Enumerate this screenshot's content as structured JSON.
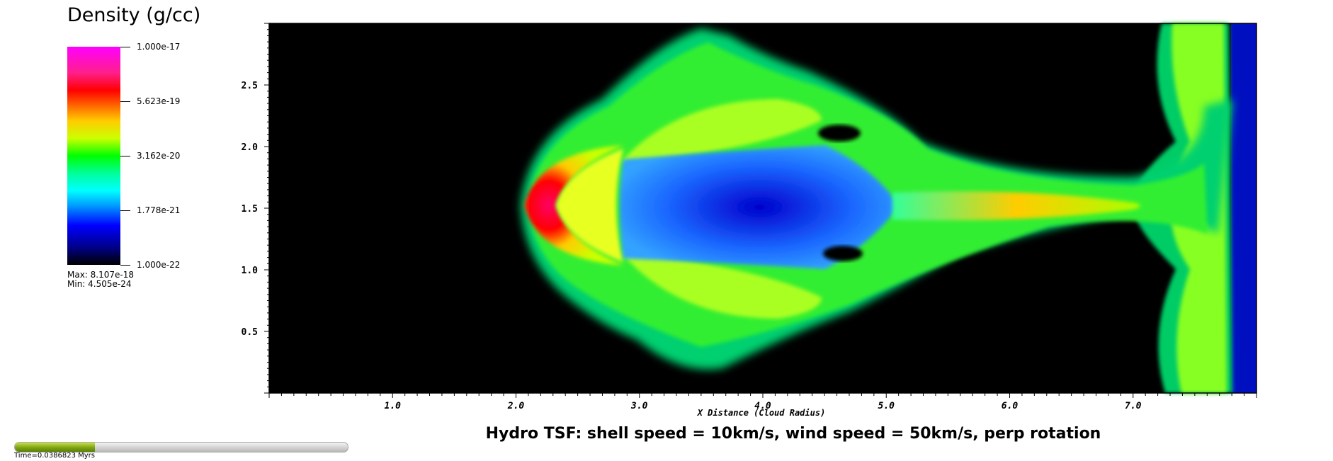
{
  "legend": {
    "title": "Density (g/cc)",
    "ticks": [
      "1.000e-17",
      "5.623e-19",
      "3.162e-20",
      "1.778e-21",
      "1.000e-22"
    ],
    "max_label": "Max:  8.107e-18",
    "min_label": "Min:  4.505e-24"
  },
  "chart_data": {
    "type": "heatmap",
    "title": "Hydro TSF: shell speed = 10km/s, wind speed = 50km/s, perp rotation",
    "xlabel": "X Distance (Cloud Radius)",
    "ylabel": "",
    "xlim": [
      0.0,
      8.0
    ],
    "ylim": [
      0.0,
      3.0
    ],
    "x_ticks": [
      1.0,
      2.0,
      3.0,
      4.0,
      5.0,
      6.0,
      7.0
    ],
    "x_tick_labels": [
      "1.0",
      "2.0",
      "3.0",
      "4.0",
      "5.0",
      "6.0",
      "7.0"
    ],
    "y_ticks": [
      0.5,
      1.0,
      1.5,
      2.0,
      2.5
    ],
    "y_tick_labels": [
      "0.5",
      "1.0",
      "1.5",
      "2.0",
      "2.5"
    ],
    "colorbar": {
      "scale": "log",
      "range": [
        1e-22,
        1e-17
      ],
      "colormap": "black-blue-cyan-green-yellow-red-magenta"
    }
  },
  "time": {
    "label": "Time=0.0386823 Myrs",
    "progress_fraction": 0.24
  }
}
